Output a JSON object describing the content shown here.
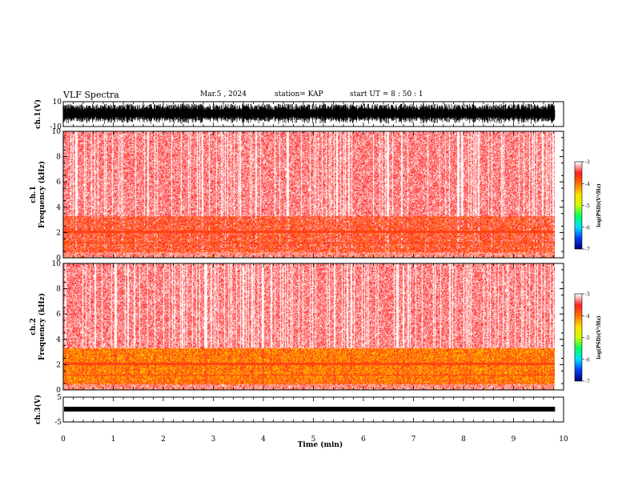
{
  "header": {
    "title": "VLF Spectra",
    "date": "Mar.5  , 2024",
    "station": "station= KAP",
    "start": "start  UT  =   8  : 50 : 1"
  },
  "chart_data": {
    "type": "heatmap",
    "xlabel": "Time  (min)",
    "xlim": [
      0,
      10
    ],
    "xticks": [
      0,
      1,
      2,
      3,
      4,
      5,
      6,
      7,
      8,
      9,
      10
    ],
    "data_end_min": 9.83,
    "panels": [
      {
        "id": "ch1-waveform",
        "type": "line",
        "ylabel": "ch.1(V)",
        "ylim": [
          -10,
          10
        ],
        "ytick_labels": [
          "10",
          "-10"
        ],
        "color": "#000000"
      },
      {
        "id": "ch1-spectrogram",
        "type": "heatmap",
        "ylabel": "ch.1  Frequency  (kHz)",
        "ylim": [
          0,
          10
        ],
        "yticks": [
          0,
          2,
          4,
          6,
          8,
          10
        ],
        "colorbar": {
          "label": "log(PSD)(V²/Hz)",
          "ticks": [
            -3,
            -4,
            -5,
            -6,
            -7
          ],
          "range": [
            -7,
            -3
          ]
        }
      },
      {
        "id": "ch2-spectrogram",
        "type": "heatmap",
        "ylabel": "ch.2  Frequency  (kHz)",
        "ylim": [
          0,
          10
        ],
        "yticks": [
          0,
          2,
          4,
          6,
          8,
          10
        ],
        "colorbar": {
          "label": "log(PSD)(V²/Hz)",
          "ticks": [
            -3,
            -4,
            -5,
            -6,
            -7
          ],
          "range": [
            -7,
            -3
          ]
        }
      },
      {
        "id": "ch3-waveform",
        "type": "line",
        "ylabel": "ch.3(V)",
        "ylim": [
          -5,
          5
        ],
        "ytick_labels": [
          "5",
          "-5"
        ],
        "color": "#000000"
      }
    ],
    "colormap": [
      "#00007a",
      "#0040ff",
      "#00e0ff",
      "#00ff60",
      "#d0ff00",
      "#ffe000",
      "#ff7000",
      "#ff2020",
      "#ffffff"
    ]
  }
}
